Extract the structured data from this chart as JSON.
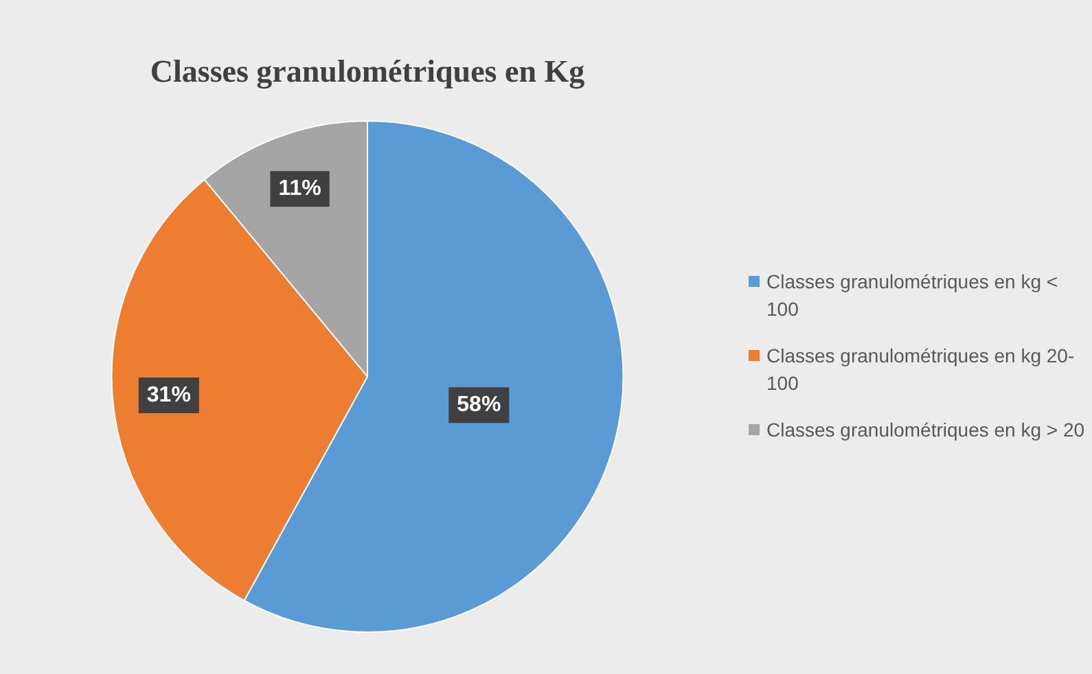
{
  "chart_data": {
    "type": "pie",
    "title": "Classes granulométriques en Kg",
    "categories": [
      "Classes granulométriques en kg < 100",
      "Classes granulométriques en kg 20-100",
      "Classes granulométriques en kg > 20"
    ],
    "values": [
      58,
      31,
      11
    ],
    "colors": [
      "#5b9bd5",
      "#ed7d31",
      "#a5a5a5"
    ],
    "value_labels": [
      "58%",
      "31%",
      "11%"
    ],
    "legend": "right"
  }
}
